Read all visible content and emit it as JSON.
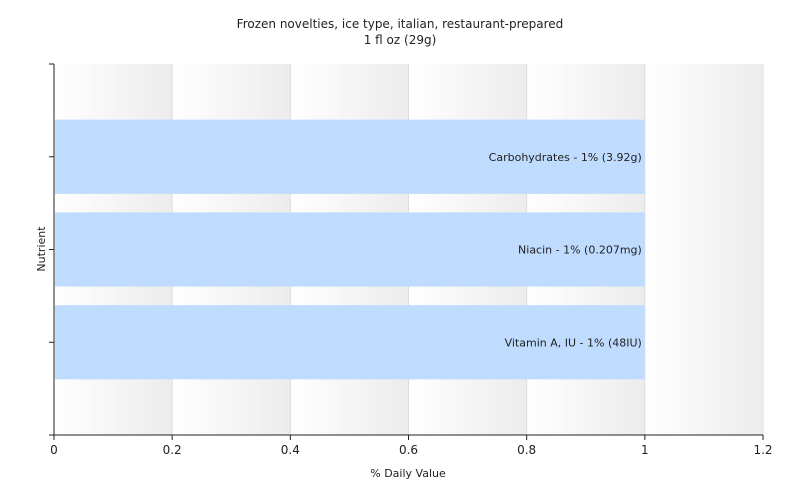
{
  "chart_data": {
    "type": "bar",
    "orientation": "horizontal",
    "title": "Frozen novelties, ice type, italian, restaurant-prepared",
    "subtitle": "1 fl oz (29g)",
    "xlabel": "% Daily Value",
    "ylabel": "Nutrient",
    "xlim": [
      0,
      1.2
    ],
    "xticks": [
      "0",
      "0.2",
      "0.4",
      "0.6",
      "0.8",
      "1",
      "1.2"
    ],
    "grid": "vertical",
    "bar_color": "#bfdcff",
    "categories": [
      "Carbohydrates",
      "Niacin",
      "Vitamin A, IU"
    ],
    "values": [
      1,
      1,
      1
    ],
    "bar_labels": [
      "Carbohydrates - 1% (3.92g)",
      "Niacin - 1% (0.207mg)",
      "Vitamin A, IU - 1% (48IU)"
    ]
  }
}
